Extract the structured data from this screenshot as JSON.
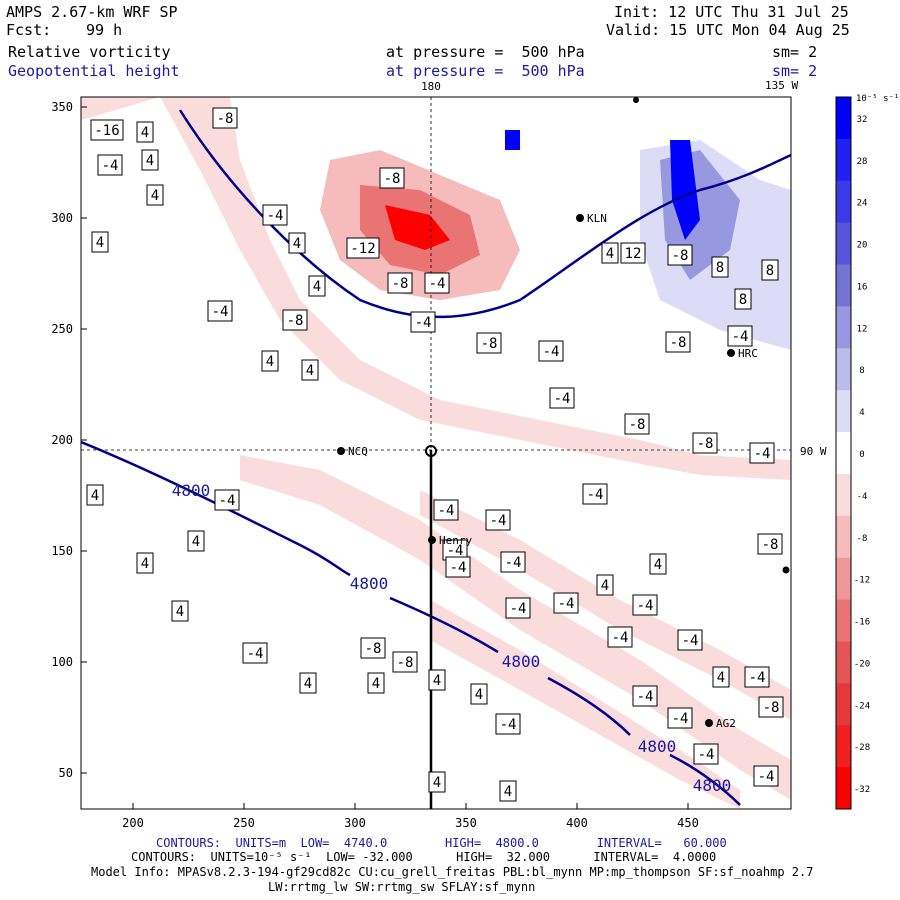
{
  "header": {
    "model": "AMPS 2.67-km WRF SP",
    "fcst_label": "Fcst:",
    "fcst_value": "99 h",
    "init": "Init: 12 UTC Thu 31 Jul 25",
    "valid": "Valid: 15 UTC Mon 04 Aug 25",
    "field1": "Relative vorticity",
    "field1_level": "at pressure =  500 hPa",
    "field1_sm": "sm= 2",
    "field2": "Geopotential height",
    "field2_level": "at pressure =  500 hPa",
    "field2_sm": "sm= 2"
  },
  "map": {
    "lon_top_180": "180",
    "lon_top_135w": "135 W",
    "lon_right_90w": "90 W",
    "x_ticks": [
      "200",
      "250",
      "300",
      "350",
      "400",
      "450"
    ],
    "y_ticks": [
      "350",
      "300",
      "250",
      "200",
      "150",
      "100",
      "50"
    ],
    "stations": [
      {
        "name": "KLN"
      },
      {
        "name": "HRC"
      },
      {
        "name": "NCQ"
      },
      {
        "name": "Henry"
      },
      {
        "name": "AG2"
      }
    ],
    "height_labels": [
      "4800",
      "4800",
      "4800",
      "4800",
      "4800"
    ],
    "vorticity_labels": [
      "-16",
      "4",
      "-8",
      "-4",
      "4",
      "4",
      "-8",
      "4",
      "-4",
      "4",
      "-12",
      "-8",
      "-4",
      "4",
      "-4",
      "-8",
      "-4",
      "-8",
      "4",
      "4",
      "-4",
      "4",
      "12",
      "8",
      "8",
      "8",
      "-4",
      "-8",
      "-4",
      "-8",
      "-8",
      "-8",
      "-4",
      "4",
      "-4",
      "4",
      "-4",
      "-4",
      "-4",
      "4",
      "-4",
      "-4",
      "-4",
      "-8",
      "4",
      "4",
      "-4",
      "-4",
      "-4",
      "-4",
      "-4",
      "4",
      "-4",
      "-8",
      "-8",
      "4",
      "4",
      "4",
      "4",
      "4",
      "-4",
      "-4",
      "-4",
      "-4",
      "-8",
      "-4",
      "4",
      "4",
      "-4",
      "-8",
      "-4"
    ]
  },
  "colorbar": {
    "unit": "10⁻⁵ s⁻¹",
    "labels": [
      "32",
      "28",
      "24",
      "20",
      "16",
      "12",
      "8",
      "4",
      "0",
      "-4",
      "-8",
      "-12",
      "-16",
      "-20",
      "-24",
      "-28",
      "-32"
    ],
    "colors": [
      "#0000ff",
      "#2020f0",
      "#3a3ae6",
      "#5656dc",
      "#7474d6",
      "#9898e0",
      "#bcbcec",
      "#dcdcf6",
      "#ffffff",
      "#fbdcdc",
      "#f6bcbc",
      "#f09898",
      "#ea7474",
      "#e45656",
      "#e23a3a",
      "#ee2020",
      "#ff0000"
    ]
  },
  "footer": {
    "line1": "CONTOURS:  UNITS=m  LOW=  4740.0        HIGH=  4800.0        INTERVAL=   60.000",
    "line2": "CONTOURS:  UNITS=10⁻⁵ s⁻¹  LOW= -32.000      HIGH=  32.000      INTERVAL=  4.0000",
    "line3": "Model Info: MPASv8.2.3-194-gf29cd82c CU:cu_grell_freitas PBL:bl_mynn MP:mp_thompson SF:sf_noahmp 2.7",
    "line4": "LW:rrtmg_lw SW:rrtmg_sw SFLAY:sf_mynn"
  }
}
